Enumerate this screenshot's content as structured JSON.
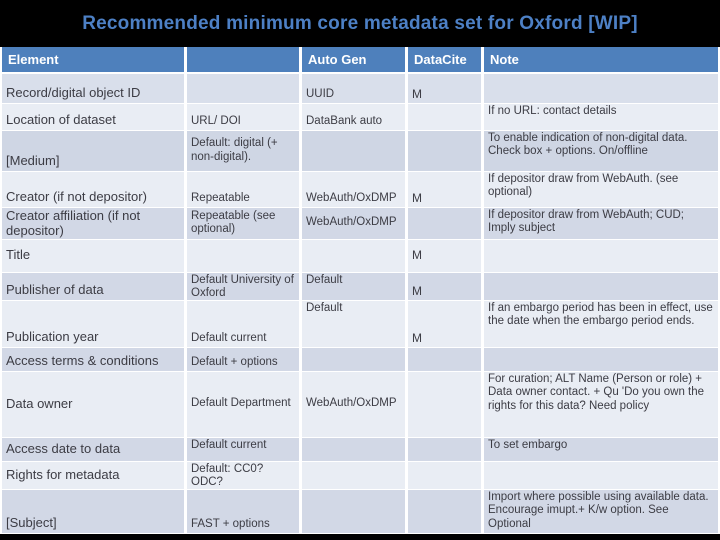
{
  "title": "Recommended minimum core metadata set for Oxford [WIP]",
  "table": {
    "columns": [
      "Element",
      "",
      "Auto Gen",
      "DataCite",
      "Note"
    ],
    "rows": [
      {
        "element": "Record/digital object ID",
        "spec": "",
        "auto_gen": "UUID",
        "datacite": "M",
        "note": ""
      },
      {
        "element": "Location of dataset",
        "spec": "URL/ DOI",
        "auto_gen": "DataBank auto",
        "datacite": "",
        "note": "If no URL: contact details"
      },
      {
        "element": "[Medium]",
        "spec": "Default: digital (+ non-digital).",
        "auto_gen": "",
        "datacite": "",
        "note": "To enable indication of non-digital data. Check box + options. On/offline"
      },
      {
        "element": "Creator (if not depositor)",
        "spec": "Repeatable",
        "auto_gen": "WebAuth/OxDMP",
        "datacite": "M",
        "note": "If depositor draw from WebAuth. (see optional)"
      },
      {
        "element": "Creator affiliation (if not depositor)",
        "spec": "Repeatable (see optional)",
        "auto_gen": "WebAuth/OxDMP",
        "datacite": "",
        "note": "If depositor draw from WebAuth; CUD; Imply subject"
      },
      {
        "element": "Title",
        "spec": "",
        "auto_gen": "",
        "datacite": "M",
        "note": ""
      },
      {
        "element": "Publisher of data",
        "spec": "Default University of Oxford",
        "auto_gen": "Default",
        "datacite": "M",
        "note": ""
      },
      {
        "element": "Publication year",
        "spec": "Default current",
        "auto_gen": "Default",
        "datacite": "M",
        "note": "If an embargo period has been in effect, use the date when the embargo period ends."
      },
      {
        "element": "Access terms & conditions",
        "spec": "Default + options",
        "auto_gen": "",
        "datacite": "",
        "note": ""
      },
      {
        "element": "Data owner",
        "spec": "Default Department",
        "auto_gen": "WebAuth/OxDMP",
        "datacite": "",
        "note": "For curation; ALT Name (Person or role) + Data owner contact. + Qu 'Do you own the rights for this data? Need policy"
      },
      {
        "element": "Access date to data",
        "spec": "Default current",
        "auto_gen": "",
        "datacite": "",
        "note": "To set embargo"
      },
      {
        "element": "Rights for metadata",
        "spec": "Default: CC0? ODC?",
        "auto_gen": "",
        "datacite": "",
        "note": ""
      },
      {
        "element": "[Subject]",
        "spec": "FAST + options",
        "auto_gen": "",
        "datacite": "",
        "note": "Import where possible using available data. Encourage imupt.+ K/w option. See Optional"
      }
    ]
  },
  "colors": {
    "slide_background": "#000000",
    "title_text": "#4d80c5",
    "header_background": "#4e80bc",
    "band_light": "#e9edf4",
    "band_medium": "#d2d8e6"
  }
}
